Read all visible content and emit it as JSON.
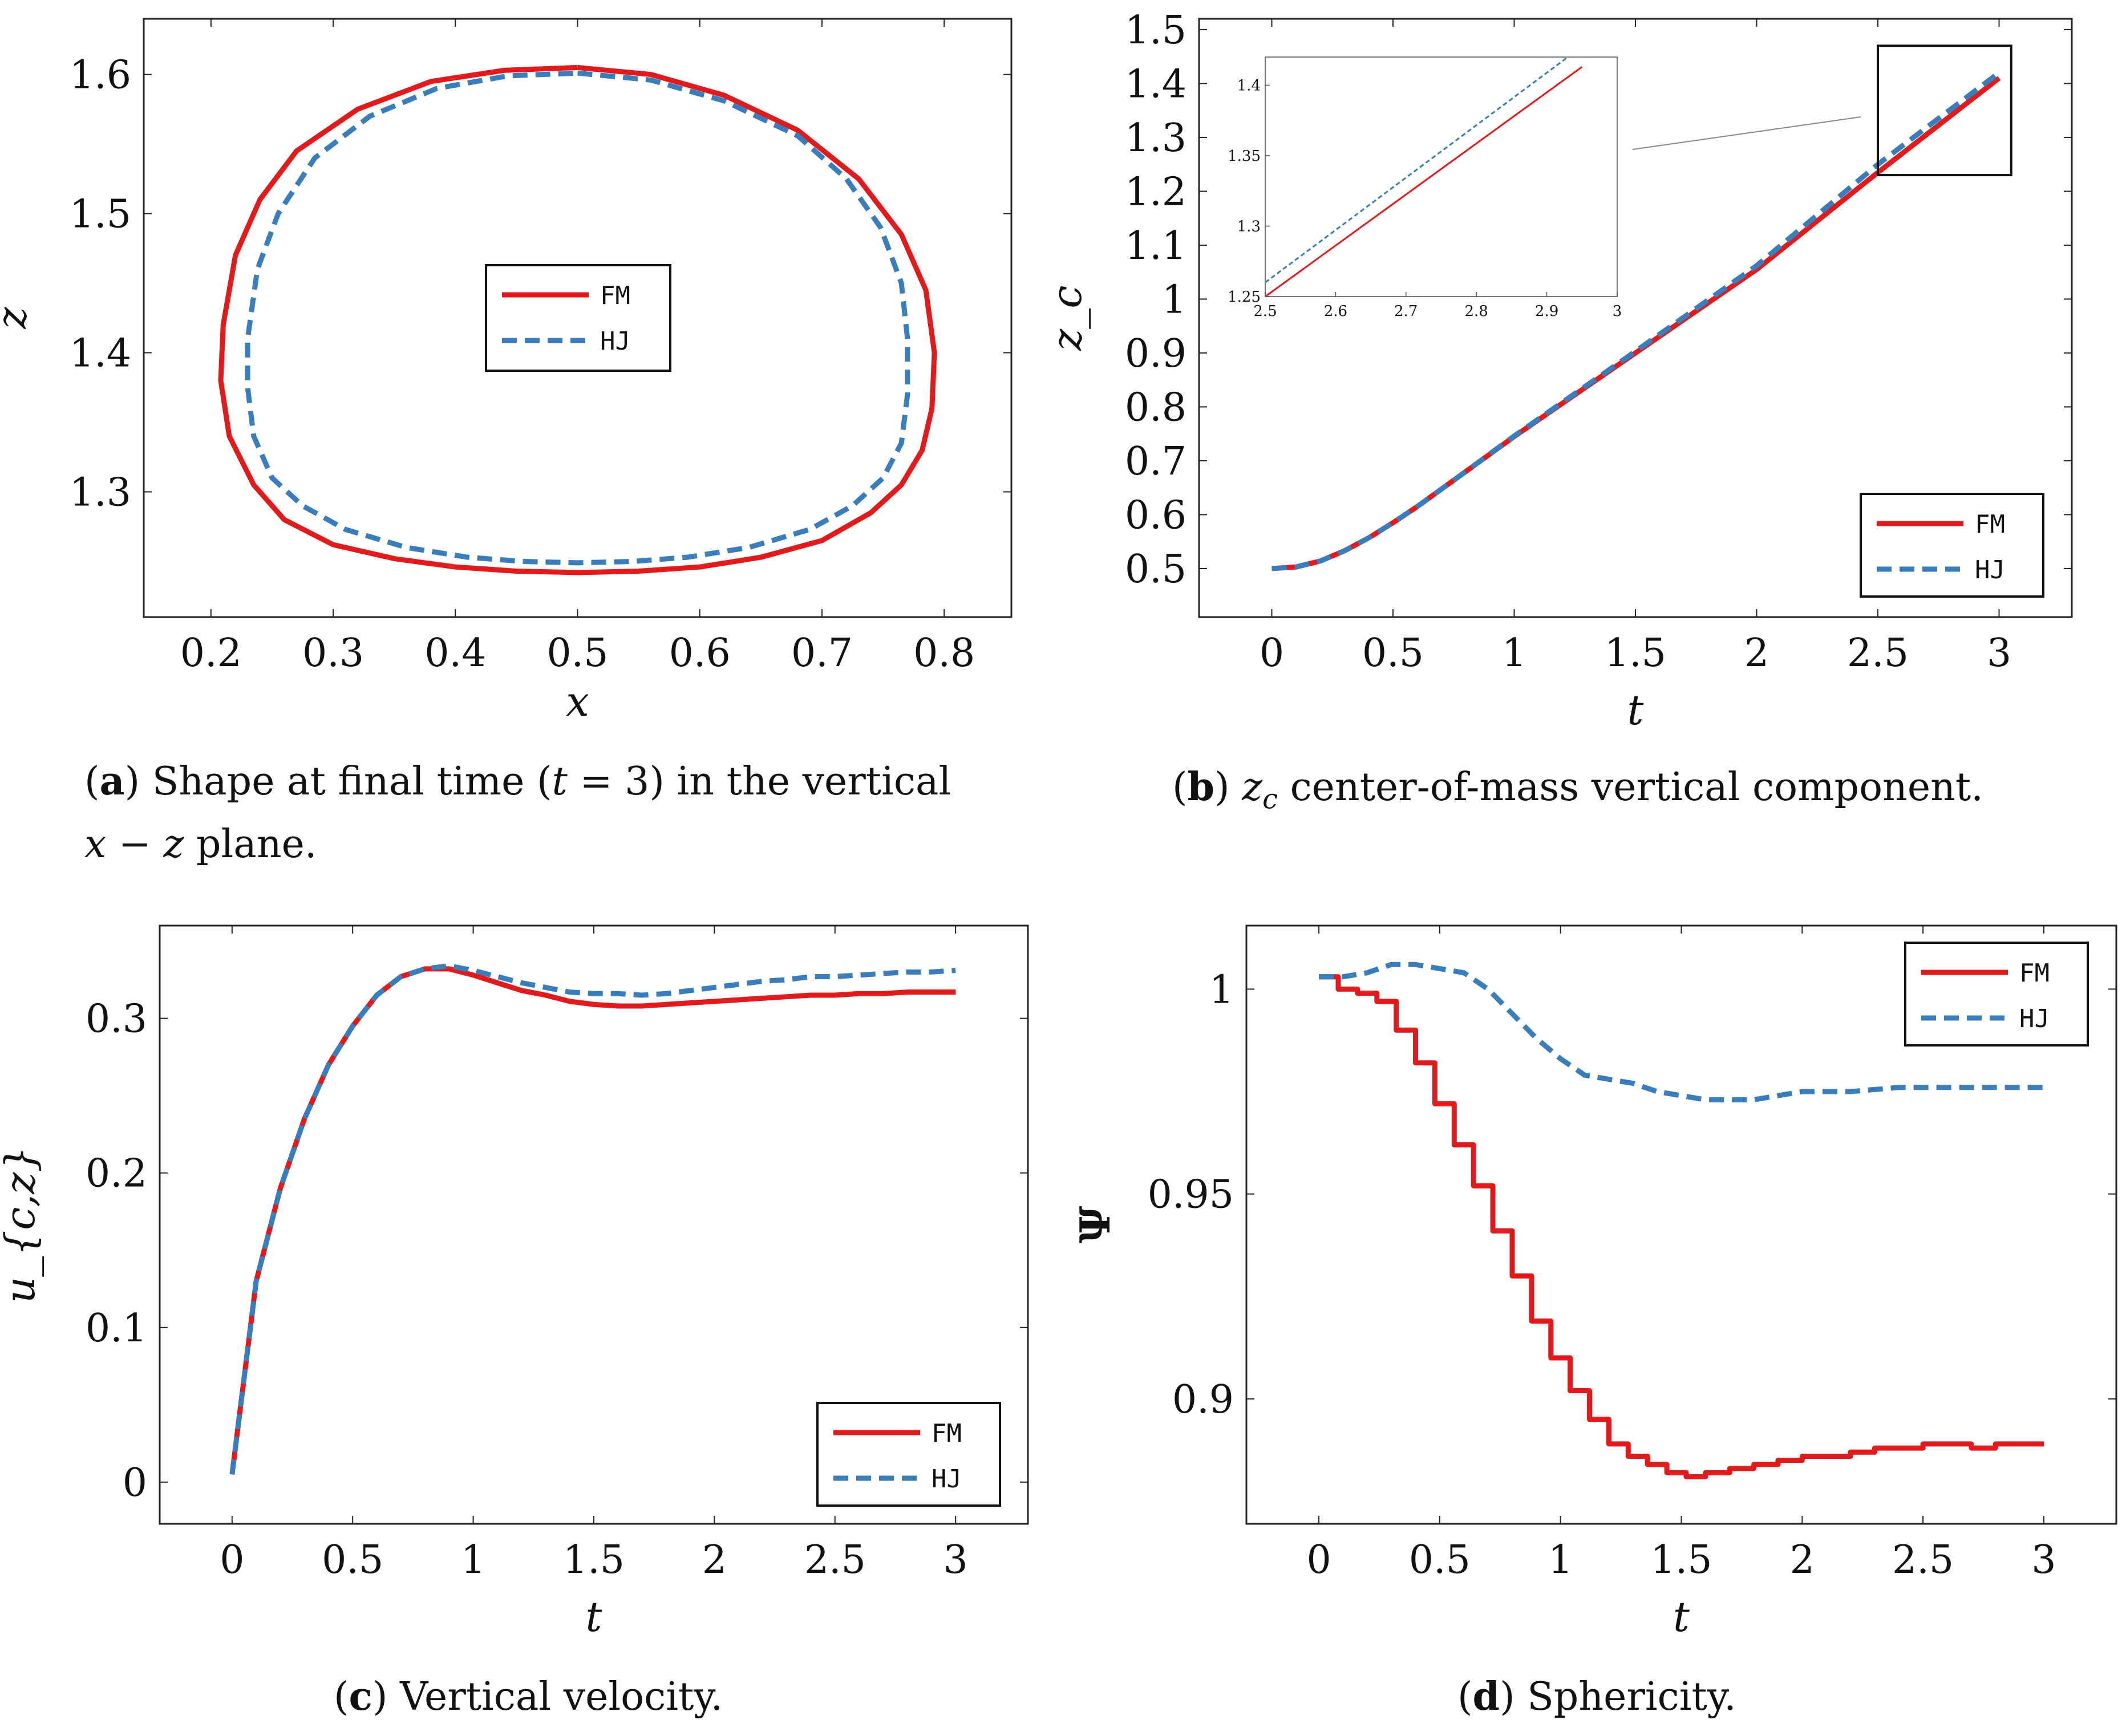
{
  "colors": {
    "fm": "#e31a1c",
    "hj": "#3a7dbd",
    "axis": "#222222",
    "box": "#111111"
  },
  "chart_data": [
    {
      "id": "a",
      "type": "line",
      "subtype": "closed-contour",
      "xlabel": "x",
      "ylabel": "z",
      "xlim": [
        0.145,
        0.855
      ],
      "ylim": [
        1.21,
        1.64
      ],
      "xticks": [
        0.2,
        0.3,
        0.4,
        0.5,
        0.6,
        0.7,
        0.8
      ],
      "xtick_labels": [
        "0.2",
        "0.3",
        "0.4",
        "0.5",
        "0.6",
        "0.7",
        "0.8"
      ],
      "yticks": [
        1.3,
        1.4,
        1.5,
        1.6
      ],
      "ytick_labels": [
        "1.3",
        "1.4",
        "1.5",
        "1.6"
      ],
      "legend": [
        "FM",
        "HJ"
      ],
      "legend_position": "center",
      "series": [
        {
          "name": "FM",
          "style": "solid",
          "color": "#e31a1c",
          "x": [
            0.5,
            0.56,
            0.62,
            0.68,
            0.73,
            0.765,
            0.785,
            0.792,
            0.79,
            0.782,
            0.765,
            0.74,
            0.7,
            0.65,
            0.6,
            0.55,
            0.5,
            0.45,
            0.4,
            0.35,
            0.3,
            0.26,
            0.235,
            0.215,
            0.208,
            0.21,
            0.22,
            0.24,
            0.27,
            0.32,
            0.38,
            0.44,
            0.5
          ],
          "y": [
            1.605,
            1.6,
            1.585,
            1.56,
            1.525,
            1.485,
            1.445,
            1.4,
            1.36,
            1.33,
            1.305,
            1.285,
            1.265,
            1.253,
            1.246,
            1.243,
            1.242,
            1.243,
            1.246,
            1.252,
            1.262,
            1.28,
            1.305,
            1.34,
            1.38,
            1.42,
            1.47,
            1.51,
            1.545,
            1.575,
            1.595,
            1.603,
            1.605
          ]
        },
        {
          "name": "HJ",
          "style": "dashed",
          "color": "#3a7dbd",
          "x": [
            0.5,
            0.56,
            0.62,
            0.68,
            0.72,
            0.748,
            0.765,
            0.77,
            0.77,
            0.765,
            0.75,
            0.725,
            0.69,
            0.64,
            0.59,
            0.545,
            0.5,
            0.455,
            0.41,
            0.36,
            0.31,
            0.275,
            0.25,
            0.235,
            0.23,
            0.23,
            0.238,
            0.255,
            0.285,
            0.33,
            0.385,
            0.443,
            0.5
          ],
          "y": [
            1.601,
            1.596,
            1.581,
            1.556,
            1.525,
            1.49,
            1.45,
            1.41,
            1.37,
            1.335,
            1.31,
            1.29,
            1.273,
            1.26,
            1.253,
            1.25,
            1.249,
            1.25,
            1.253,
            1.26,
            1.273,
            1.29,
            1.31,
            1.34,
            1.375,
            1.41,
            1.46,
            1.5,
            1.54,
            1.57,
            1.59,
            1.599,
            1.601
          ]
        }
      ]
    },
    {
      "id": "b",
      "type": "line",
      "xlabel": "t",
      "ylabel": "z_c",
      "xlim": [
        -0.3,
        3.3
      ],
      "ylim": [
        0.41,
        1.52
      ],
      "xticks": [
        0,
        0.5,
        1,
        1.5,
        2,
        2.5,
        3
      ],
      "xtick_labels": [
        "0",
        "0.5",
        "1",
        "1.5",
        "2",
        "2.5",
        "3"
      ],
      "yticks": [
        0.5,
        0.6,
        0.7,
        0.8,
        0.9,
        1,
        1.1,
        1.2,
        1.3,
        1.4,
        1.5
      ],
      "ytick_labels": [
        "0.5",
        "0.6",
        "0.7",
        "0.8",
        "0.9",
        "1",
        "1.1",
        "1.2",
        "1.3",
        "1.4",
        "1.5"
      ],
      "legend": [
        "FM",
        "HJ"
      ],
      "legend_position": "bottom-right",
      "series": [
        {
          "name": "FM",
          "style": "solid",
          "color": "#e31a1c",
          "x": [
            0,
            0.1,
            0.2,
            0.3,
            0.4,
            0.5,
            0.6,
            0.8,
            1.0,
            1.5,
            2.0,
            2.5,
            3.0
          ],
          "y": [
            0.5,
            0.503,
            0.514,
            0.533,
            0.557,
            0.585,
            0.615,
            0.68,
            0.745,
            0.9,
            1.055,
            1.235,
            1.41
          ]
        },
        {
          "name": "HJ",
          "style": "dashed",
          "color": "#3a7dbd",
          "x": [
            0,
            0.1,
            0.2,
            0.3,
            0.4,
            0.5,
            0.6,
            0.8,
            1.0,
            1.5,
            2.0,
            2.5,
            3.0
          ],
          "y": [
            0.5,
            0.503,
            0.514,
            0.533,
            0.557,
            0.585,
            0.615,
            0.68,
            0.746,
            0.903,
            1.062,
            1.25,
            1.42
          ]
        }
      ],
      "inset": {
        "xlim": [
          2.5,
          3.0
        ],
        "ylim": [
          1.25,
          1.42
        ],
        "xticks": [
          2.5,
          2.6,
          2.7,
          2.8,
          2.9,
          3
        ],
        "xtick_labels": [
          "2.5",
          "2.6",
          "2.7",
          "2.8",
          "2.9",
          "3"
        ],
        "yticks": [
          1.25,
          1.3,
          1.35,
          1.4
        ],
        "ytick_labels": [
          "1.25",
          "1.3",
          "1.35",
          "1.4"
        ],
        "zoom_box": {
          "x": [
            2.5,
            3.05
          ],
          "y": [
            1.23,
            1.47
          ]
        },
        "series": [
          {
            "name": "FM",
            "x": [
              2.5,
              2.95
            ],
            "y": [
              1.25,
              1.413
            ]
          },
          {
            "name": "HJ",
            "x": [
              2.5,
              2.93
            ],
            "y": [
              1.26,
              1.42
            ]
          }
        ]
      }
    },
    {
      "id": "c",
      "type": "line",
      "xlabel": "t",
      "ylabel": "u_{c,z}",
      "xlim": [
        -0.3,
        3.3
      ],
      "ylim": [
        -0.027,
        0.36
      ],
      "xticks": [
        0,
        0.5,
        1,
        1.5,
        2,
        2.5,
        3
      ],
      "xtick_labels": [
        "0",
        "0.5",
        "1",
        "1.5",
        "2",
        "2.5",
        "3"
      ],
      "yticks": [
        0,
        0.1,
        0.2,
        0.3
      ],
      "ytick_labels": [
        "0",
        "0.1",
        "0.2",
        "0.3"
      ],
      "legend": [
        "FM",
        "HJ"
      ],
      "legend_position": "bottom-right",
      "series": [
        {
          "name": "FM",
          "style": "solid",
          "color": "#e31a1c",
          "x": [
            0,
            0.1,
            0.2,
            0.3,
            0.4,
            0.5,
            0.6,
            0.7,
            0.8,
            0.9,
            1.0,
            1.1,
            1.2,
            1.3,
            1.4,
            1.5,
            1.6,
            1.7,
            1.8,
            1.9,
            2.0,
            2.1,
            2.2,
            2.3,
            2.4,
            2.5,
            2.6,
            2.7,
            2.8,
            2.9,
            3.0
          ],
          "y": [
            0.005,
            0.13,
            0.19,
            0.235,
            0.27,
            0.295,
            0.315,
            0.327,
            0.332,
            0.332,
            0.328,
            0.323,
            0.318,
            0.315,
            0.311,
            0.309,
            0.308,
            0.308,
            0.309,
            0.31,
            0.311,
            0.312,
            0.313,
            0.314,
            0.315,
            0.315,
            0.316,
            0.316,
            0.317,
            0.317,
            0.317
          ]
        },
        {
          "name": "HJ",
          "style": "dashed",
          "color": "#3a7dbd",
          "x": [
            0,
            0.1,
            0.2,
            0.3,
            0.4,
            0.5,
            0.6,
            0.7,
            0.8,
            0.9,
            1.0,
            1.1,
            1.2,
            1.3,
            1.4,
            1.5,
            1.6,
            1.7,
            1.8,
            1.9,
            2.0,
            2.1,
            2.2,
            2.3,
            2.4,
            2.5,
            2.6,
            2.7,
            2.8,
            2.9,
            3.0
          ],
          "y": [
            0.005,
            0.13,
            0.19,
            0.235,
            0.27,
            0.295,
            0.315,
            0.327,
            0.332,
            0.334,
            0.331,
            0.327,
            0.323,
            0.32,
            0.317,
            0.316,
            0.316,
            0.315,
            0.316,
            0.318,
            0.32,
            0.322,
            0.324,
            0.325,
            0.327,
            0.327,
            0.328,
            0.329,
            0.33,
            0.33,
            0.331
          ]
        }
      ]
    },
    {
      "id": "d",
      "type": "line",
      "subtype": "step",
      "xlabel": "t",
      "ylabel": "Ψ",
      "xlim": [
        -0.3,
        3.3
      ],
      "ylim": [
        0.8695,
        1.0155
      ],
      "xticks": [
        0,
        0.5,
        1,
        1.5,
        2,
        2.5,
        3
      ],
      "xtick_labels": [
        "0",
        "0.5",
        "1",
        "1.5",
        "2",
        "2.5",
        "3"
      ],
      "yticks": [
        0.9,
        0.95,
        1
      ],
      "ytick_labels": [
        "0.9",
        "0.95",
        "1"
      ],
      "legend": [
        "FM",
        "HJ"
      ],
      "legend_position": "top-right",
      "series": [
        {
          "name": "FM",
          "style": "solid",
          "color": "#e31a1c",
          "x": [
            0,
            0.08,
            0.16,
            0.24,
            0.32,
            0.4,
            0.48,
            0.56,
            0.64,
            0.72,
            0.8,
            0.88,
            0.96,
            1.04,
            1.12,
            1.2,
            1.28,
            1.36,
            1.44,
            1.52,
            1.6,
            1.7,
            1.8,
            1.9,
            2.0,
            2.1,
            2.2,
            2.3,
            2.4,
            2.5,
            2.6,
            2.7,
            2.8,
            2.9,
            3.0
          ],
          "y": [
            1.003,
            1.0,
            0.999,
            0.997,
            0.99,
            0.982,
            0.972,
            0.962,
            0.952,
            0.941,
            0.93,
            0.919,
            0.91,
            0.902,
            0.895,
            0.889,
            0.886,
            0.884,
            0.882,
            0.881,
            0.882,
            0.883,
            0.884,
            0.885,
            0.886,
            0.886,
            0.887,
            0.888,
            0.888,
            0.889,
            0.889,
            0.888,
            0.889,
            0.889,
            0.889
          ]
        },
        {
          "name": "HJ",
          "style": "dashed",
          "color": "#3a7dbd",
          "x": [
            0,
            0.1,
            0.2,
            0.3,
            0.4,
            0.5,
            0.6,
            0.7,
            0.8,
            0.9,
            1.0,
            1.1,
            1.2,
            1.3,
            1.4,
            1.5,
            1.6,
            1.7,
            1.8,
            1.9,
            2.0,
            2.2,
            2.4,
            2.6,
            2.8,
            3.0
          ],
          "y": [
            1.003,
            1.003,
            1.004,
            1.006,
            1.006,
            1.005,
            1.004,
            1.0,
            0.994,
            0.988,
            0.983,
            0.979,
            0.978,
            0.977,
            0.975,
            0.974,
            0.973,
            0.973,
            0.973,
            0.974,
            0.975,
            0.975,
            0.976,
            0.976,
            0.976,
            0.976
          ]
        }
      ]
    }
  ],
  "captions": {
    "a": {
      "label": "a",
      "line1": "Shape at final time (",
      "t": "t",
      "eq": " = 3) in the vertical",
      "line2_math": "x − z",
      "line2": " plane."
    },
    "b": {
      "label": "b",
      "math": "z",
      "sub": "c",
      "text": " center-of-mass vertical component."
    },
    "c": {
      "label": "c",
      "text": " Vertical velocity."
    },
    "d": {
      "label": "d",
      "text": " Sphericity."
    }
  }
}
